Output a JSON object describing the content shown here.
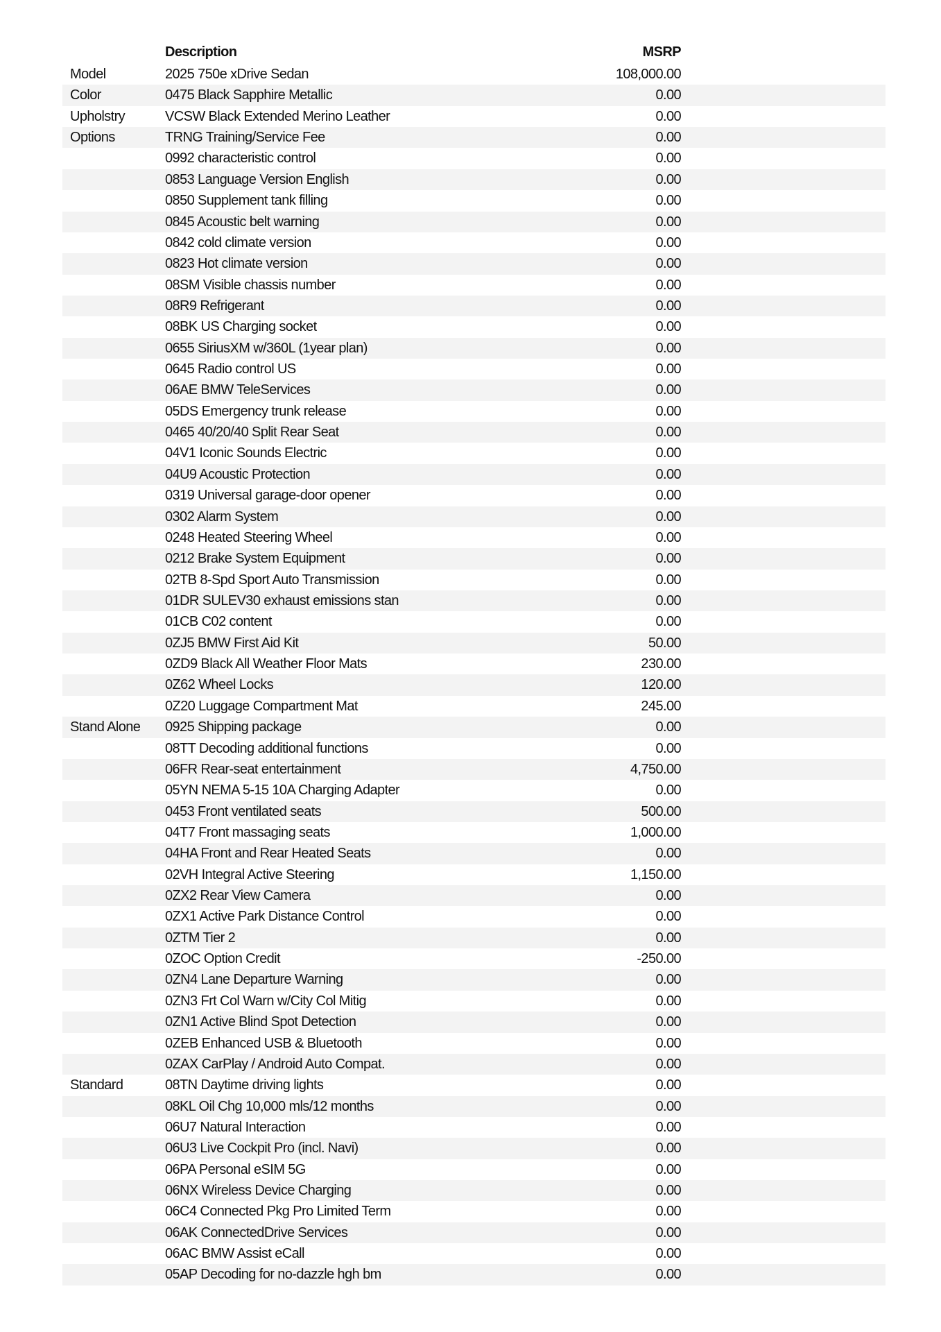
{
  "header": {
    "description": "Description",
    "msrp": "MSRP"
  },
  "rows": [
    {
      "category": "Model",
      "description": "2025 750e xDrive Sedan",
      "msrp": "108,000.00"
    },
    {
      "category": "Color",
      "description": "0475 Black Sapphire Metallic",
      "msrp": "0.00"
    },
    {
      "category": "Upholstry",
      "description": "VCSW Black Extended Merino Leather",
      "msrp": "0.00"
    },
    {
      "category": "Options",
      "description": "TRNG Training/Service Fee",
      "msrp": "0.00"
    },
    {
      "category": "",
      "description": "0992 characteristic control",
      "msrp": "0.00"
    },
    {
      "category": "",
      "description": "0853 Language Version English",
      "msrp": "0.00"
    },
    {
      "category": "",
      "description": "0850 Supplement tank filling",
      "msrp": "0.00"
    },
    {
      "category": "",
      "description": "0845 Acoustic belt warning",
      "msrp": "0.00"
    },
    {
      "category": "",
      "description": "0842 cold climate version",
      "msrp": "0.00"
    },
    {
      "category": "",
      "description": "0823 Hot climate version",
      "msrp": "0.00"
    },
    {
      "category": "",
      "description": "08SM Visible chassis number",
      "msrp": "0.00"
    },
    {
      "category": "",
      "description": "08R9 Refrigerant",
      "msrp": "0.00"
    },
    {
      "category": "",
      "description": "08BK US Charging socket",
      "msrp": "0.00"
    },
    {
      "category": "",
      "description": "0655 SiriusXM w/360L (1year plan)",
      "msrp": "0.00"
    },
    {
      "category": "",
      "description": "0645 Radio control US",
      "msrp": "0.00"
    },
    {
      "category": "",
      "description": "06AE BMW TeleServices",
      "msrp": "0.00"
    },
    {
      "category": "",
      "description": "05DS Emergency trunk release",
      "msrp": "0.00"
    },
    {
      "category": "",
      "description": "0465 40/20/40 Split Rear Seat",
      "msrp": "0.00"
    },
    {
      "category": "",
      "description": "04V1 Iconic Sounds Electric",
      "msrp": "0.00"
    },
    {
      "category": "",
      "description": "04U9 Acoustic Protection",
      "msrp": "0.00"
    },
    {
      "category": "",
      "description": "0319 Universal garage-door opener",
      "msrp": "0.00"
    },
    {
      "category": "",
      "description": "0302 Alarm System",
      "msrp": "0.00"
    },
    {
      "category": "",
      "description": "0248 Heated Steering Wheel",
      "msrp": "0.00"
    },
    {
      "category": "",
      "description": "0212 Brake System Equipment",
      "msrp": "0.00"
    },
    {
      "category": "",
      "description": "02TB 8-Spd Sport Auto Transmission",
      "msrp": "0.00"
    },
    {
      "category": "",
      "description": "01DR SULEV30 exhaust emissions stan",
      "msrp": "0.00"
    },
    {
      "category": "",
      "description": "01CB C02 content",
      "msrp": "0.00"
    },
    {
      "category": "",
      "description": "0ZJ5 BMW First Aid Kit",
      "msrp": "50.00"
    },
    {
      "category": "",
      "description": "0ZD9 Black All Weather Floor Mats",
      "msrp": "230.00"
    },
    {
      "category": "",
      "description": "0Z62 Wheel Locks",
      "msrp": "120.00"
    },
    {
      "category": "",
      "description": "0Z20 Luggage Compartment Mat",
      "msrp": "245.00"
    },
    {
      "category": "Stand Alone",
      "description": "0925 Shipping package",
      "msrp": "0.00"
    },
    {
      "category": "",
      "description": "08TT Decoding additional functions",
      "msrp": "0.00"
    },
    {
      "category": "",
      "description": "06FR Rear-seat entertainment",
      "msrp": "4,750.00"
    },
    {
      "category": "",
      "description": "05YN NEMA 5-15 10A Charging Adapter",
      "msrp": "0.00"
    },
    {
      "category": "",
      "description": "0453 Front ventilated seats",
      "msrp": "500.00"
    },
    {
      "category": "",
      "description": "04T7 Front massaging seats",
      "msrp": "1,000.00"
    },
    {
      "category": "",
      "description": "04HA Front and Rear Heated Seats",
      "msrp": "0.00"
    },
    {
      "category": "",
      "description": "02VH Integral Active Steering",
      "msrp": "1,150.00"
    },
    {
      "category": "",
      "description": "0ZX2 Rear View Camera",
      "msrp": "0.00"
    },
    {
      "category": "",
      "description": "0ZX1 Active Park Distance Control",
      "msrp": "0.00"
    },
    {
      "category": "",
      "description": "0ZTM Tier 2",
      "msrp": "0.00"
    },
    {
      "category": "",
      "description": "0ZOC Option Credit",
      "msrp": "-250.00"
    },
    {
      "category": "",
      "description": "0ZN4 Lane Departure Warning",
      "msrp": "0.00"
    },
    {
      "category": "",
      "description": "0ZN3 Frt Col Warn w/City Col Mitig",
      "msrp": "0.00"
    },
    {
      "category": "",
      "description": "0ZN1 Active Blind Spot Detection",
      "msrp": "0.00"
    },
    {
      "category": "",
      "description": "0ZEB Enhanced USB & Bluetooth",
      "msrp": "0.00"
    },
    {
      "category": "",
      "description": "0ZAX CarPlay / Android Auto Compat.",
      "msrp": "0.00"
    },
    {
      "category": "Standard",
      "description": "08TN Daytime driving lights",
      "msrp": "0.00"
    },
    {
      "category": "",
      "description": "08KL Oil Chg 10,000 mls/12 months",
      "msrp": "0.00"
    },
    {
      "category": "",
      "description": "06U7 Natural Interaction",
      "msrp": "0.00"
    },
    {
      "category": "",
      "description": "06U3 Live Cockpit Pro (incl. Navi)",
      "msrp": "0.00"
    },
    {
      "category": "",
      "description": "06PA Personal eSIM 5G",
      "msrp": "0.00"
    },
    {
      "category": "",
      "description": "06NX Wireless Device Charging",
      "msrp": "0.00"
    },
    {
      "category": "",
      "description": "06C4 Connected Pkg Pro Limited Term",
      "msrp": "0.00"
    },
    {
      "category": "",
      "description": "06AK ConnectedDrive Services",
      "msrp": "0.00"
    },
    {
      "category": "",
      "description": "06AC BMW Assist eCall",
      "msrp": "0.00"
    },
    {
      "category": "",
      "description": "05AP Decoding for no-dazzle hgh bm",
      "msrp": "0.00"
    }
  ]
}
